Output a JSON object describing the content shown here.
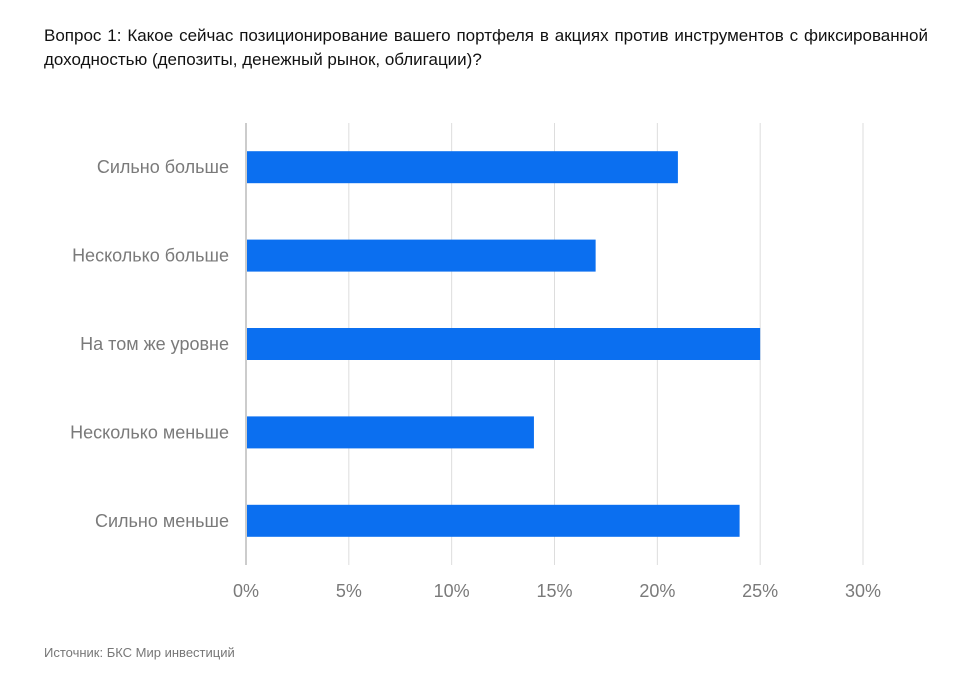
{
  "title": "Вопрос 1: Какое сейчас позиционирование вашего портфеля в акциях против инструментов с фиксированной доходностью (депозиты, денежный рынок, облигации)?",
  "source": "Источник: БКС Мир инвестиций",
  "colors": {
    "bar": "#0b6ff0",
    "grid": "#dddddd",
    "axis": "#cccccc",
    "label": "#7a7a7a"
  },
  "chart_data": {
    "type": "bar",
    "orientation": "horizontal",
    "categories": [
      "Сильно больше",
      "Несколько больше",
      "На том же уровне",
      "Несколько меньше",
      "Сильно меньше"
    ],
    "values": [
      21,
      17,
      25,
      14,
      24
    ],
    "unit": "%",
    "xlim": [
      0,
      30
    ],
    "xticks": [
      0,
      5,
      10,
      15,
      20,
      25,
      30
    ],
    "xtick_labels": [
      "0%",
      "5%",
      "10%",
      "15%",
      "20%",
      "25%",
      "30%"
    ],
    "grid": true,
    "legend": "none"
  }
}
